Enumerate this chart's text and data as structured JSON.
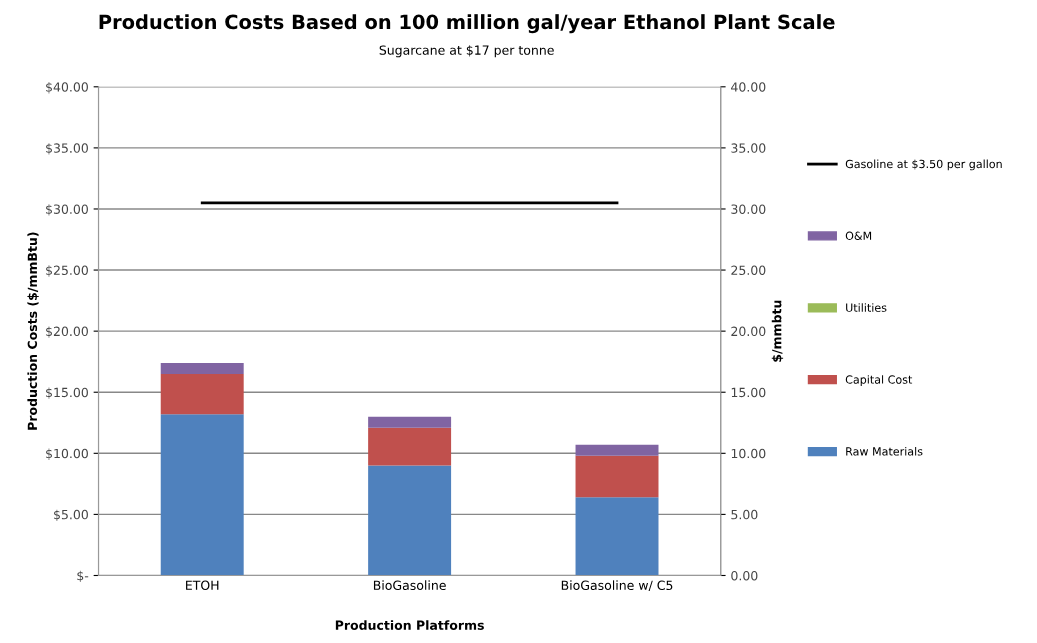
{
  "chart_data": {
    "type": "bar",
    "stacked": true,
    "title": "Production Costs Based on 100 million gal/year Ethanol Plant Scale",
    "subtitle": "Sugarcane at $17 per tonne",
    "xlabel": "Production Platforms",
    "ylabel": "Production Costs ($/mmBtu)",
    "y2label": "$/mmbtu",
    "categories": [
      "ETOH",
      "BioGasoline",
      "BioGasoline w/ C5"
    ],
    "series": [
      {
        "name": "Raw Materials",
        "color": "#4f81bd",
        "values": [
          13.2,
          9.0,
          6.4
        ]
      },
      {
        "name": "Capital Cost",
        "color": "#c0504d",
        "values": [
          3.3,
          3.1,
          3.4
        ]
      },
      {
        "name": "Utilities",
        "color": "#9bbb59",
        "values": [
          0,
          0,
          0
        ]
      },
      {
        "name": "O&M",
        "color": "#8064a2",
        "values": [
          0.9,
          0.9,
          0.9
        ]
      },
      {
        "name": "Gasoline at $3.50 per gallon",
        "type": "line",
        "axis": "y2",
        "color": "#000000",
        "values": [
          30.5,
          30.5,
          30.5
        ]
      }
    ],
    "ylim": [
      0,
      40
    ],
    "yticks": [
      {
        "value": 0,
        "label": "$-"
      },
      {
        "value": 5,
        "label": "$5.00"
      },
      {
        "value": 10,
        "label": "$10.00"
      },
      {
        "value": 15,
        "label": "$15.00"
      },
      {
        "value": 20,
        "label": "$20.00"
      },
      {
        "value": 25,
        "label": "$25.00"
      },
      {
        "value": 30,
        "label": "$30.00"
      },
      {
        "value": 35,
        "label": "$35.00"
      },
      {
        "value": 40,
        "label": "$40.00"
      }
    ],
    "y2lim": [
      0,
      40
    ],
    "y2ticks": [
      {
        "value": 0,
        "label": "0.00"
      },
      {
        "value": 5,
        "label": "5.00"
      },
      {
        "value": 10,
        "label": "10.00"
      },
      {
        "value": 15,
        "label": "15.00"
      },
      {
        "value": 20,
        "label": "20.00"
      },
      {
        "value": 25,
        "label": "25.00"
      },
      {
        "value": 30,
        "label": "30.00"
      },
      {
        "value": 35,
        "label": "35.00"
      },
      {
        "value": 40,
        "label": "40.00"
      }
    ],
    "grid": "y",
    "legend": "right"
  }
}
